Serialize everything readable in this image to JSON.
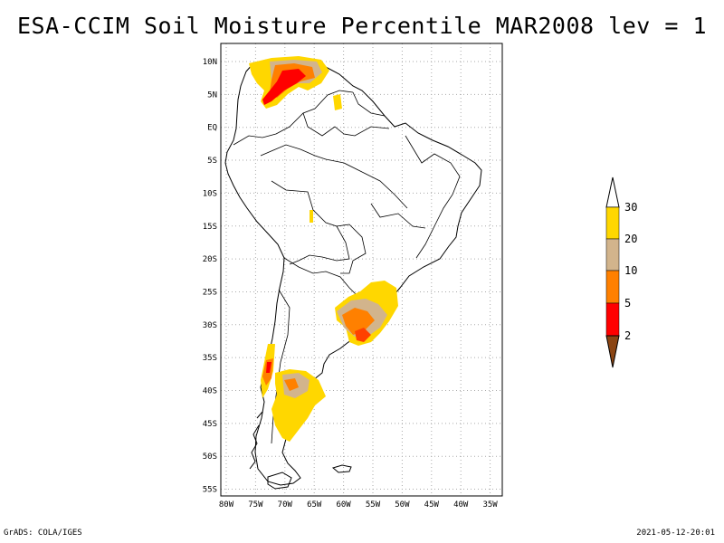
{
  "title": "ESA-CCIM Soil Moisture Percentile MAR2008 lev = 1",
  "footer": {
    "left": "GrADS: COLA/IGES",
    "right": "2021-05-12-20:01"
  },
  "map": {
    "lat_labels": [
      "10N",
      "5N",
      "EQ",
      "5S",
      "10S",
      "15S",
      "20S",
      "25S",
      "30S",
      "35S",
      "40S",
      "45S",
      "50S",
      "55S"
    ],
    "lon_labels": [
      "80W",
      "75W",
      "70W",
      "65W",
      "60W",
      "55W",
      "50W",
      "45W",
      "40W",
      "35W"
    ],
    "lat_range": [
      -56,
      12
    ],
    "lon_range": [
      -81,
      -33
    ],
    "grid": true
  },
  "colorbar": {
    "levels": [
      "2",
      "5",
      "10",
      "20",
      "30"
    ],
    "colors": {
      "below_2": "#8b4513",
      "2_5": "#ff0000",
      "5_10": "#ff8000",
      "10_20": "#d2b48c",
      "20_30": "#ffd700",
      "above_30": "#ffffff"
    }
  }
}
